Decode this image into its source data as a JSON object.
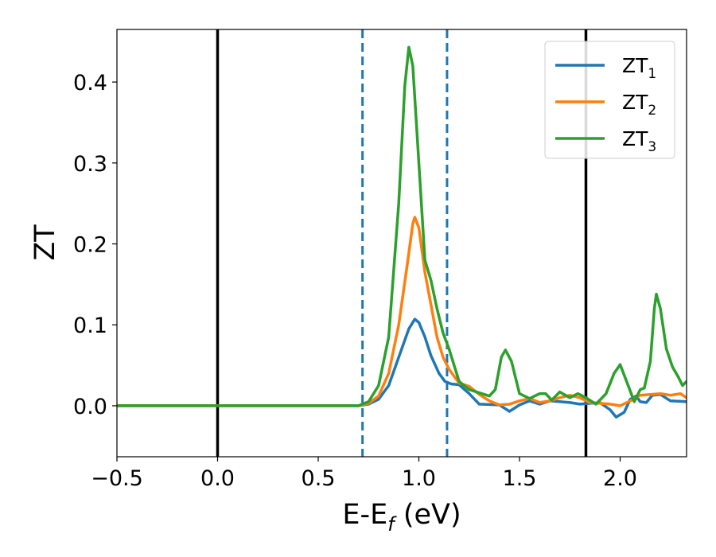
{
  "chart_data": {
    "type": "line",
    "xlabel": "E-E_f (eV)",
    "ylabel": "ZT",
    "xlim": [
      -0.5,
      2.33
    ],
    "ylim": [
      -0.063,
      0.465
    ],
    "x_ticks": [
      -0.5,
      0.0,
      0.5,
      1.0,
      1.5,
      2.0
    ],
    "x_tick_labels": [
      "−0.5",
      "0.0",
      "0.5",
      "1.0",
      "1.5",
      "2.0"
    ],
    "y_ticks": [
      0.0,
      0.1,
      0.2,
      0.3,
      0.4
    ],
    "y_tick_labels": [
      "0.0",
      "0.1",
      "0.2",
      "0.3",
      "0.4"
    ],
    "grid": false,
    "legend_position": "top-right",
    "vertical_lines": [
      {
        "x": 0.0,
        "style": "solid",
        "color": "#000000"
      },
      {
        "x": 1.83,
        "style": "solid",
        "color": "#000000"
      },
      {
        "x": 0.72,
        "style": "dashed",
        "color": "#1f77b4"
      },
      {
        "x": 1.14,
        "style": "dashed",
        "color": "#1f77b4"
      }
    ],
    "series": [
      {
        "name": "ZT",
        "subscript": "1",
        "color": "#1f77b4",
        "points": [
          [
            -0.5,
            0
          ],
          [
            0.7,
            0
          ],
          [
            0.75,
            0.002
          ],
          [
            0.8,
            0.008
          ],
          [
            0.85,
            0.025
          ],
          [
            0.9,
            0.06
          ],
          [
            0.95,
            0.095
          ],
          [
            0.98,
            0.107
          ],
          [
            1.0,
            0.103
          ],
          [
            1.03,
            0.085
          ],
          [
            1.06,
            0.062
          ],
          [
            1.1,
            0.04
          ],
          [
            1.13,
            0.03
          ],
          [
            1.16,
            0.027
          ],
          [
            1.2,
            0.026
          ],
          [
            1.25,
            0.015
          ],
          [
            1.3,
            0.002
          ],
          [
            1.4,
            0.001
          ],
          [
            1.45,
            -0.007
          ],
          [
            1.5,
            0.001
          ],
          [
            1.55,
            0.006
          ],
          [
            1.6,
            0.002
          ],
          [
            1.65,
            0.006
          ],
          [
            1.7,
            0.005
          ],
          [
            1.75,
            0.004
          ],
          [
            1.8,
            0.002
          ],
          [
            1.85,
            0.003
          ],
          [
            1.9,
            0.004
          ],
          [
            1.95,
            -0.005
          ],
          [
            1.98,
            -0.014
          ],
          [
            2.02,
            -0.008
          ],
          [
            2.05,
            0.008
          ],
          [
            2.08,
            0.012
          ],
          [
            2.1,
            0.005
          ],
          [
            2.13,
            0.004
          ],
          [
            2.16,
            0.013
          ],
          [
            2.2,
            0.014
          ],
          [
            2.25,
            0.006
          ],
          [
            2.33,
            0.005
          ]
        ]
      },
      {
        "name": "ZT",
        "subscript": "2",
        "color": "#ff7f0e",
        "points": [
          [
            -0.5,
            0
          ],
          [
            0.7,
            0
          ],
          [
            0.75,
            0.003
          ],
          [
            0.8,
            0.012
          ],
          [
            0.85,
            0.04
          ],
          [
            0.9,
            0.1
          ],
          [
            0.94,
            0.17
          ],
          [
            0.97,
            0.225
          ],
          [
            0.98,
            0.233
          ],
          [
            1.0,
            0.22
          ],
          [
            1.03,
            0.165
          ],
          [
            1.06,
            0.125
          ],
          [
            1.09,
            0.085
          ],
          [
            1.12,
            0.06
          ],
          [
            1.15,
            0.045
          ],
          [
            1.2,
            0.028
          ],
          [
            1.25,
            0.024
          ],
          [
            1.3,
            0.014
          ],
          [
            1.35,
            0.006
          ],
          [
            1.4,
            0.001
          ],
          [
            1.45,
            0.002
          ],
          [
            1.5,
            0.006
          ],
          [
            1.55,
            0.009
          ],
          [
            1.6,
            0.004
          ],
          [
            1.65,
            0.006
          ],
          [
            1.7,
            0.01
          ],
          [
            1.75,
            0.013
          ],
          [
            1.8,
            0.01
          ],
          [
            1.85,
            0.004
          ],
          [
            1.9,
            0.003
          ],
          [
            1.95,
            0.002
          ],
          [
            2.0,
            0.0
          ],
          [
            2.05,
            0.006
          ],
          [
            2.1,
            0.013
          ],
          [
            2.15,
            0.014
          ],
          [
            2.2,
            0.015
          ],
          [
            2.25,
            0.013
          ],
          [
            2.3,
            0.015
          ],
          [
            2.33,
            0.01
          ]
        ]
      },
      {
        "name": "ZT",
        "subscript": "3",
        "color": "#2ca02c",
        "points": [
          [
            -0.5,
            0
          ],
          [
            0.7,
            0
          ],
          [
            0.75,
            0.005
          ],
          [
            0.8,
            0.025
          ],
          [
            0.85,
            0.085
          ],
          [
            0.9,
            0.25
          ],
          [
            0.93,
            0.395
          ],
          [
            0.95,
            0.443
          ],
          [
            0.97,
            0.42
          ],
          [
            1.0,
            0.3
          ],
          [
            1.03,
            0.18
          ],
          [
            1.06,
            0.155
          ],
          [
            1.09,
            0.12
          ],
          [
            1.12,
            0.09
          ],
          [
            1.15,
            0.07
          ],
          [
            1.2,
            0.03
          ],
          [
            1.25,
            0.02
          ],
          [
            1.3,
            0.016
          ],
          [
            1.35,
            0.012
          ],
          [
            1.38,
            0.02
          ],
          [
            1.41,
            0.06
          ],
          [
            1.43,
            0.069
          ],
          [
            1.46,
            0.055
          ],
          [
            1.5,
            0.015
          ],
          [
            1.55,
            0.009
          ],
          [
            1.6,
            0.015
          ],
          [
            1.63,
            0.015
          ],
          [
            1.66,
            0.007
          ],
          [
            1.7,
            0.017
          ],
          [
            1.75,
            0.01
          ],
          [
            1.79,
            0.015
          ],
          [
            1.83,
            0.01
          ],
          [
            1.88,
            0.002
          ],
          [
            1.93,
            0.015
          ],
          [
            1.97,
            0.04
          ],
          [
            2.0,
            0.051
          ],
          [
            2.04,
            0.025
          ],
          [
            2.07,
            0.005
          ],
          [
            2.1,
            0.02
          ],
          [
            2.12,
            0.022
          ],
          [
            2.15,
            0.055
          ],
          [
            2.17,
            0.12
          ],
          [
            2.18,
            0.138
          ],
          [
            2.2,
            0.12
          ],
          [
            2.23,
            0.07
          ],
          [
            2.26,
            0.048
          ],
          [
            2.29,
            0.035
          ],
          [
            2.31,
            0.025
          ],
          [
            2.33,
            0.03
          ]
        ]
      }
    ]
  }
}
